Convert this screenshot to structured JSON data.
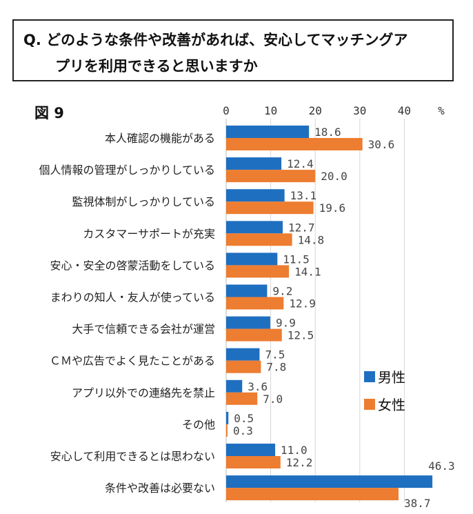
{
  "question": {
    "line1": "Q. どのような条件や改善があれば、安心してマッチングア",
    "line2": "プリを利用できると思いますか"
  },
  "figure_label": "図 9",
  "chart_data": {
    "type": "bar",
    "orientation": "horizontal",
    "unit": "%",
    "categories": [
      "本人確認の機能がある",
      "個人情報の管理がしっかりしている",
      "監視体制がしっかりしている",
      "カスタマーサポートが充実",
      "安心・安全の啓蒙活動をしている",
      "まわりの知人・友人が使っている",
      "大手で信頼できる会社が運営",
      "ＣＭや広告でよく見たことがある",
      "アプリ以外での連絡先を禁止",
      "その他",
      "安心して利用できるとは思わない",
      "条件や改善は必要ない"
    ],
    "series": [
      {
        "name": "男性",
        "color": "#1f6fc0",
        "values": [
          18.6,
          12.4,
          13.1,
          12.7,
          11.5,
          9.2,
          9.9,
          7.5,
          3.6,
          0.5,
          11.0,
          46.3
        ]
      },
      {
        "name": "女性",
        "color": "#ed7d31",
        "values": [
          30.6,
          20.0,
          19.6,
          14.8,
          14.1,
          12.9,
          12.5,
          7.8,
          7.0,
          0.3,
          12.2,
          38.7
        ]
      }
    ],
    "xticks": [
      "0",
      "10",
      "20",
      "30",
      "40"
    ],
    "xlim": [
      0,
      50
    ],
    "grid": true,
    "legend": "right"
  }
}
